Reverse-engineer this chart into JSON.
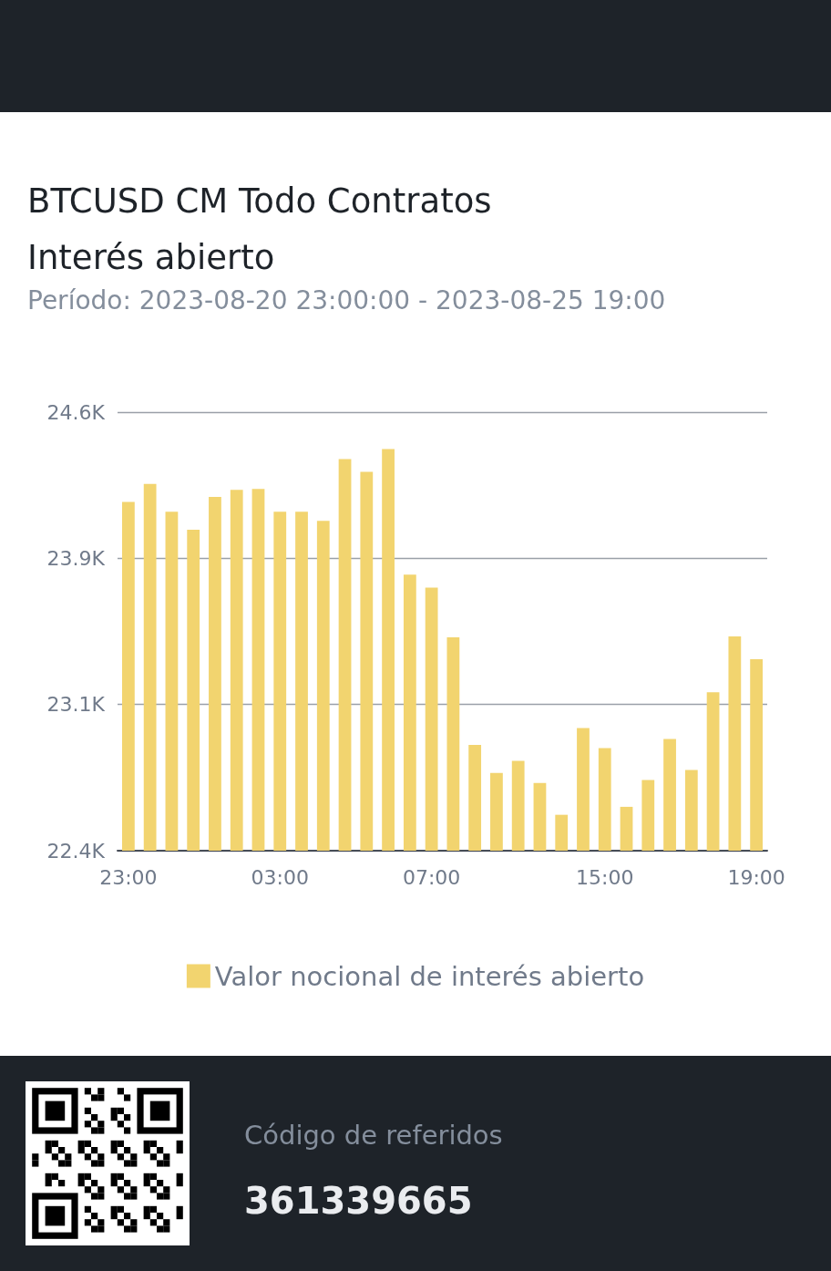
{
  "chart_data": {
    "type": "bar",
    "title": "BTCUSD CM Todo Contratos\nInterés abierto",
    "subtitle": "Período: 2023-08-20 23:00:00 - 2023-08-25 19:00",
    "categories": [
      "23:00",
      null,
      null,
      null,
      null,
      null,
      null,
      "03:00",
      null,
      null,
      null,
      null,
      null,
      null,
      "07:00",
      null,
      null,
      null,
      null,
      null,
      null,
      null,
      "15:00",
      null,
      null,
      null,
      null,
      null,
      null,
      "19:00"
    ],
    "series": [
      {
        "name": "Valor nocional de interés abierto",
        "color": "#f2d46f",
        "values": [
          24150,
          24240,
          24100,
          24010,
          24175,
          24210,
          24215,
          24100,
          24100,
          24055,
          24365,
          24300,
          24415,
          23785,
          23720,
          23470,
          22930,
          22790,
          22850,
          22740,
          22580,
          23015,
          22915,
          22620,
          22755,
          22960,
          22805,
          23195,
          23475,
          23360
        ]
      }
    ],
    "ylim": [
      22400,
      24600
    ],
    "yticks": [
      {
        "value": 22400,
        "label": "22.4K"
      },
      {
        "value": 23133,
        "label": "23.1K"
      },
      {
        "value": 23867,
        "label": "23.9K"
      },
      {
        "value": 24600,
        "label": "24.6K"
      }
    ],
    "grid": "y",
    "legend": "bottom",
    "annotations": [
      "Código de referidos",
      "361339665"
    ]
  }
}
